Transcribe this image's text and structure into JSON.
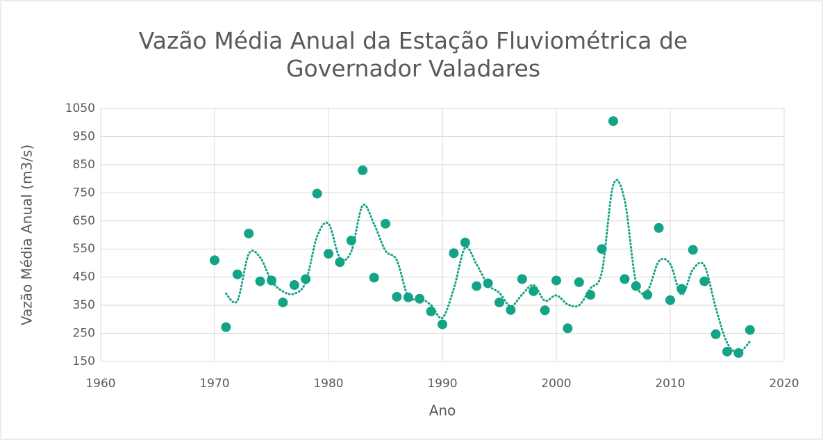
{
  "chart_data": {
    "type": "scatter",
    "title": "Vazão Média Anual da Estação Fluviométrica de Governador Valadares",
    "x_label": "Ano",
    "y_label": "Vazão Média Anual (m3/s)",
    "x": [
      1970,
      1971,
      1972,
      1973,
      1974,
      1975,
      1976,
      1977,
      1978,
      1979,
      1980,
      1981,
      1982,
      1983,
      1984,
      1985,
      1986,
      1987,
      1988,
      1989,
      1990,
      1991,
      1992,
      1993,
      1994,
      1995,
      1996,
      1997,
      1998,
      1999,
      2000,
      2001,
      2002,
      2003,
      2004,
      2005,
      2006,
      2007,
      2008,
      2009,
      2010,
      2011,
      2012,
      2013,
      2014,
      2015,
      2016,
      2017
    ],
    "values": [
      510,
      272,
      460,
      605,
      435,
      438,
      360,
      422,
      443,
      747,
      533,
      503,
      580,
      830,
      448,
      640,
      380,
      378,
      373,
      328,
      282,
      535,
      573,
      418,
      428,
      360,
      333,
      443,
      400,
      332,
      438,
      268,
      432,
      387,
      550,
      1005,
      443,
      418,
      387,
      625,
      368,
      408,
      547,
      435,
      247,
      185,
      180,
      262
    ],
    "color": "#13a386",
    "trendline_period": 2,
    "xlim": [
      1960,
      2020
    ],
    "xticks": [
      1960,
      1970,
      1980,
      1990,
      2000,
      2010,
      2020
    ],
    "ylim": [
      150,
      1050
    ],
    "yticks": [
      150,
      250,
      350,
      450,
      550,
      650,
      750,
      850,
      950,
      1050
    ],
    "grid": true
  }
}
